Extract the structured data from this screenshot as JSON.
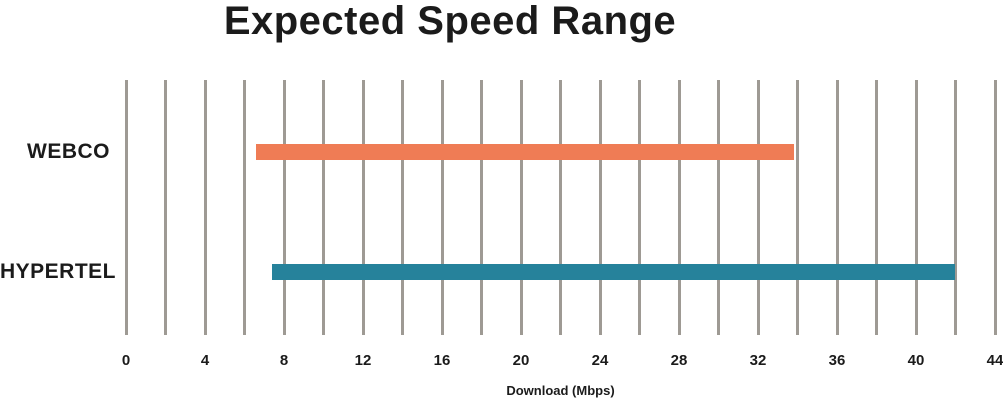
{
  "title": "Expected Speed Range",
  "colors": {
    "webco_bar": "#ef7c55",
    "hypertel_bar": "#26829b",
    "gridline": "#9e9a94",
    "text": "#1b1b1b",
    "background": "#ffffff"
  },
  "chart_data": {
    "type": "bar",
    "orientation": "horizontal",
    "variant": "range",
    "title": "Expected Speed Range",
    "xlabel": "Download (Mbps)",
    "ylabel": "",
    "categories": [
      "WEBCO",
      "HYPERTEL"
    ],
    "series": [
      {
        "name": "WEBCO",
        "range": [
          6.6,
          33.8
        ],
        "color": "#ef7c55"
      },
      {
        "name": "HYPERTEL",
        "range": [
          7.4,
          42
        ],
        "color": "#26829b"
      }
    ],
    "xlim": [
      0,
      44
    ],
    "gridline_step": 2,
    "tick_step": 4,
    "tick_labels": [
      "0",
      "4",
      "8",
      "12",
      "16",
      "20",
      "24",
      "28",
      "32",
      "36",
      "40",
      "44"
    ],
    "grid": true,
    "legend": false
  }
}
